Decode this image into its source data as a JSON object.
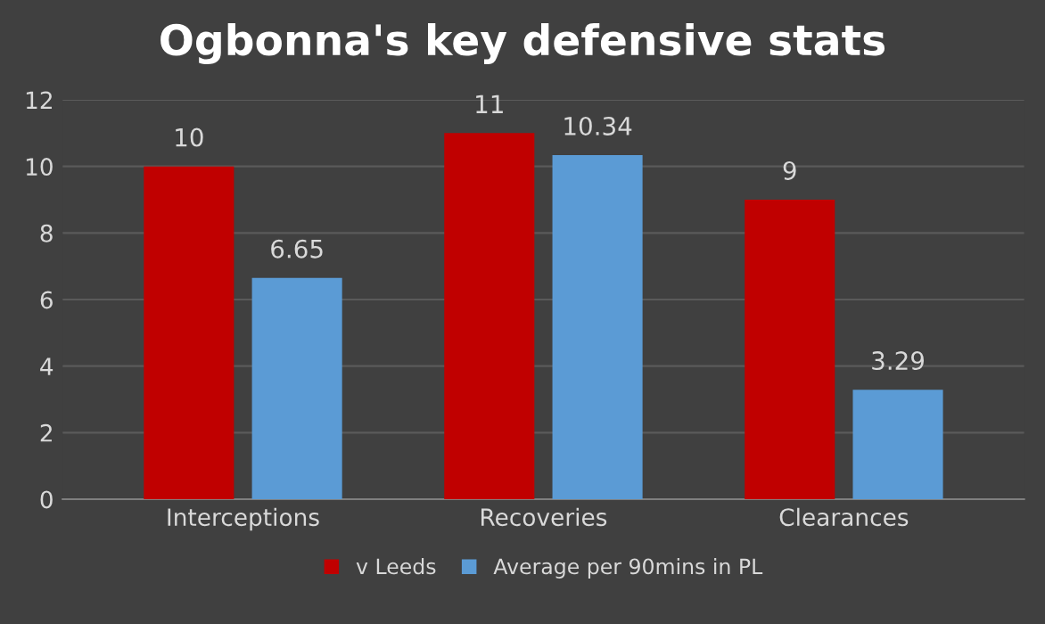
{
  "chart_data": {
    "type": "bar",
    "title": "Ogbonna's key defensive stats",
    "categories": [
      "Interceptions",
      "Recoveries",
      "Clearances"
    ],
    "series": [
      {
        "name": "v Leeds",
        "color": "#c00000",
        "values": [
          10,
          11,
          9
        ]
      },
      {
        "name": "Average per 90mins in PL",
        "color": "#5b9bd5",
        "values": [
          6.65,
          10.34,
          3.29
        ]
      }
    ],
    "ylim": [
      0,
      12
    ],
    "yticks": [
      0,
      2,
      4,
      6,
      8,
      10,
      12
    ],
    "grid": "y",
    "legend": "bottom",
    "data_labels": true
  }
}
